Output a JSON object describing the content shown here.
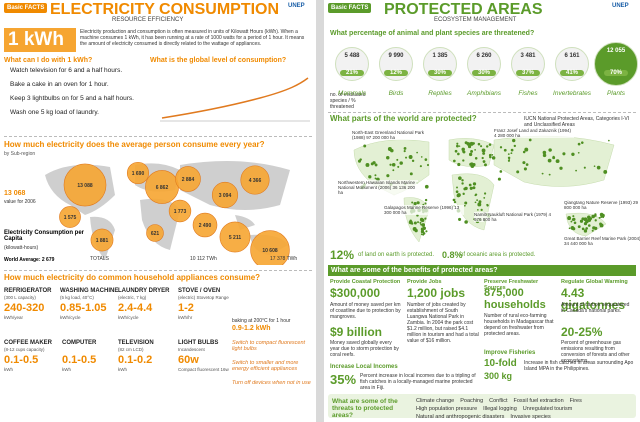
{
  "left": {
    "badge": "Basic FACTS",
    "title": "ELECTRICITY CONSUMPTION",
    "subtitle": "RESOURCE EFFICIENCY",
    "logo": "UNEP",
    "kwh": "1 kWh",
    "kwh_text": "Electricity production and consumption is often measured in units of Kilowatt Hours (kWh). When a machine consumes 1 kWh, it has been running at a rate of 1000 watts for a period of 1 hour. It means the amount of electricity consumed is directly related to the wattage of appliances.",
    "do_title": "What can I do with 1 kWh?",
    "do_items": [
      "Watch television for 6 and a half hours.",
      "Bake a cake in an oven for 1 hour.",
      "Keep 3 lightbulbs on for 5 and a half hours.",
      "Wash one 5 kg load of laundry."
    ],
    "global_title": "What is the global level of consumption?",
    "map_title": "How much electricity does the average person consume every year?",
    "map_sub": "by Sub-region",
    "bubbles": [
      "13 088",
      "1 690",
      "6 862",
      "2 884",
      "1 575",
      "1 773",
      "621",
      "3 094",
      "4 366",
      "1 881",
      "2 490",
      "5 211",
      "10 608"
    ],
    "side_value": "13 068",
    "side_note": "value for 2006",
    "legend_title": "Electricity Consumption per Capita",
    "legend_unit": "(kilowatt-hours)",
    "world_avg": "World Average: 2 679",
    "totals": "TOTALS",
    "total1": "10 112 TWh",
    "total2": "17 378 TWh",
    "app_title": "How much electricity do common household appliances consume?",
    "appliances": [
      {
        "name": "REFRIGERATOR",
        "spec": "(300 L capacity)",
        "value": "240-320",
        "unit": "kWh/year"
      },
      {
        "name": "WASHING MACHINE",
        "spec": "(5 kg load, 40°C)",
        "value": "0.85-1.05",
        "unit": "kWh/cycle"
      },
      {
        "name": "LAUNDRY DRYER",
        "spec": "(electric, 7 kg)",
        "value": "2.4-4.4",
        "unit": "kWh/cycle"
      },
      {
        "name": "STOVE / OVEN",
        "spec": "(electric) Stovetop Range",
        "value": "1-2",
        "unit": "kWh/hr"
      },
      {
        "name": "COFFEE MAKER",
        "spec": "(8-12 cups capacity)",
        "value": "0.1-0.5",
        "unit": "kWh"
      },
      {
        "name": "COMPUTER",
        "spec": "",
        "value": "0.1-0.5",
        "unit": "kWh"
      },
      {
        "name": "TELEVISION",
        "spec": "(82 cm LCD)",
        "value": "0.1-0.2",
        "unit": "kWh"
      },
      {
        "name": "LIGHT BULBS",
        "spec": "Incandescent",
        "value": "60w",
        "unit": "Compact fluorescent 16w"
      }
    ],
    "baking": "baking at 200°C for 1 hour",
    "baking_value": "0.9-1.2 kWh",
    "tips": [
      "Switch to compact fluorescent light bulbs",
      "Switch to smaller and more energy efficient appliances",
      "Turn off devices when not in use"
    ]
  },
  "right": {
    "badge": "Basic FACTS",
    "title": "PROTECTED AREAS",
    "subtitle": "ECOSYSTEM MANAGEMENT",
    "logo": "UNEP",
    "species_title": "What percentage of animal and plant species are threatened?",
    "species": [
      {
        "count": "5 488",
        "pct": "21%",
        "name": "Mammals"
      },
      {
        "count": "9 990",
        "pct": "12%",
        "name": "Birds"
      },
      {
        "count": "1 385",
        "pct": "30%",
        "name": "Reptiles"
      },
      {
        "count": "6 260",
        "pct": "30%",
        "name": "Amphibians"
      },
      {
        "count": "3 481",
        "pct": "37%",
        "name": "Fishes"
      },
      {
        "count": "6 161",
        "pct": "41%",
        "name": "Invertebrates"
      },
      {
        "count": "12 055",
        "pct": "70%",
        "name": "Plants"
      }
    ],
    "species_legend": "no. of evaluated species / % threatened",
    "map_title": "What parts of the world are protected?",
    "map_legend": "IUCN National Protected Areas, Categories I-VI and Unclassified Areas",
    "sites": [
      "North-East Greenland National Park (1988) 97 200 000 ha",
      "Franz Josef Land and Zakaznik (1994) 4 280 000 ha",
      "Northwestern Hawaiian Islands Marine National Monument (2006) 36 136 200 ha",
      "Galapagos Marine Reserve (1996) 13 300 000 ha",
      "Namib Naukluft National Park (1979) 4 976 800 ha",
      "Qiangtang Nature Reserve (1993) 29 800 000 ha",
      "Great Barrier Reef Marine Park (2004) 34 440 000 ha"
    ],
    "land_pct": "12%",
    "land_text": "of land on earth is protected.",
    "ocean_pct": "0.8%",
    "ocean_text": "of oceanic area is protected.",
    "benefits_title": "What are some of the benefits of protected areas?",
    "benefits": [
      {
        "head": "Provide Coastal Protection",
        "big": "$300,000",
        "text": "Amount of money saved per km of coastline due to protection by mangroves.",
        "big2": "$9 billion",
        "text2": "Money saved globally every year due to storm protection by coral reefs."
      },
      {
        "head": "Provide Jobs",
        "big": "1,200 jobs",
        "text": "Number of jobs created by establishment of South Luangwa National Park in Zambia. In 2004 the park cost $1.2 million, but raised $4.1 million in tourism and had a total value of $16 million."
      },
      {
        "head": "Preserve Freshwater Sources",
        "big": "875,000 households",
        "text": "Number of rural eco-farming households in Madagascar that depend on freshwater from protected areas."
      },
      {
        "head": "Regulate Global Warming",
        "big": "4.43 gigatonnes",
        "text": "Amount of carbon sequestered in Canada's national parks.",
        "big2": "20-25%",
        "text2": "Percent of greenhouse gas emissions resulting from conversion of forests and other ecosystems."
      }
    ],
    "incomes_head": "Increase Local Incomes",
    "incomes_big": "35%",
    "incomes_text": "Percent increase in local incomes due to a tripling of fish catches in a locally-managed marine protected area in Fiji.",
    "fish_head": "Improve Fisheries",
    "fish_big": "10-fold",
    "fish_big2": "300 kg",
    "fish_text": "Increase in fish catches in areas surrounding Apo Island MPA in the Philippines.",
    "threats_title": "What are some of the threats to protected areas?",
    "threats": [
      "Climate change",
      "Poaching",
      "Conflict",
      "Fossil fuel extraction",
      "Fires",
      "High population pressure",
      "Illegal logging",
      "Unregulated tourism",
      "Natural and anthropogenic disasters",
      "Invasive species"
    ]
  }
}
